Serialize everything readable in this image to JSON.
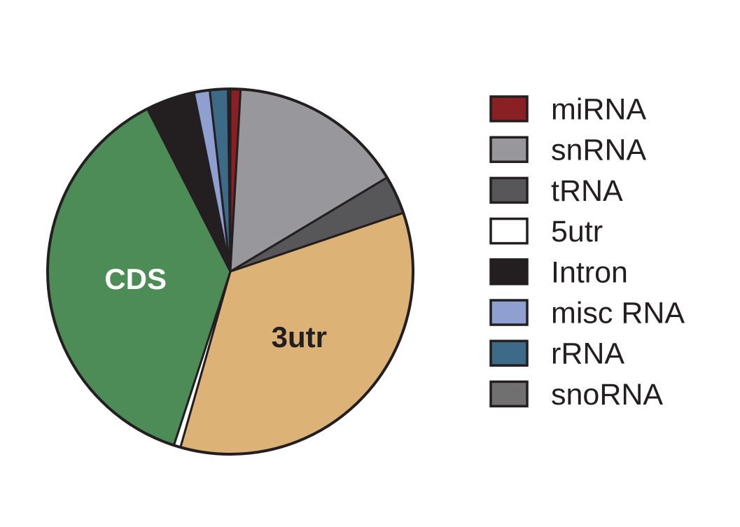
{
  "chart_data": {
    "type": "pie",
    "title": "",
    "start_angle_deg": 0,
    "direction": "clockwise",
    "slices": [
      {
        "label": "miRNA",
        "value": 0.9,
        "color": "#8a1f24"
      },
      {
        "label": "snRNA",
        "value": 15.5,
        "color": "#98989c"
      },
      {
        "label": "tRNA",
        "value": 3.4,
        "color": "#57575a"
      },
      {
        "label": "3utr",
        "value": 34.6,
        "color": "#dcb277",
        "inside_label": "3utr",
        "inside_label_color": "#231f20"
      },
      {
        "label": "5utr",
        "value": 0.6,
        "color": "#ffffff"
      },
      {
        "label": "CDS",
        "value": 37.5,
        "color": "#4d8c57",
        "inside_label": "CDS",
        "inside_label_color": "#ffffff"
      },
      {
        "label": "Intron",
        "value": 4.3,
        "color": "#231f20"
      },
      {
        "label": "misc RNA",
        "value": 1.4,
        "color": "#8e9fd0"
      },
      {
        "label": "rRNA",
        "value": 1.6,
        "color": "#3d6a86"
      },
      {
        "label": "snoRNA",
        "value": 0.2,
        "color": "#707070"
      }
    ],
    "legend": {
      "placement": "right",
      "entries": [
        {
          "label": "miRNA",
          "color": "#8a1f24"
        },
        {
          "label": "snRNA",
          "color": "#98989c"
        },
        {
          "label": "tRNA",
          "color": "#57575a"
        },
        {
          "label": "5utr",
          "color": "#ffffff"
        },
        {
          "label": "Intron",
          "color": "#231f20"
        },
        {
          "label": "misc RNA",
          "color": "#8e9fd0"
        },
        {
          "label": "rRNA",
          "color": "#3d6a86"
        },
        {
          "label": "snoRNA",
          "color": "#707070"
        }
      ]
    },
    "outline_color": "#231f20"
  }
}
